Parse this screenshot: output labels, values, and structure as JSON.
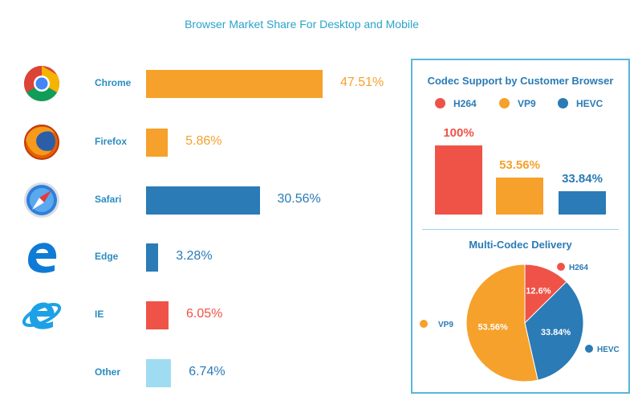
{
  "title": "Browser Market Share For Desktop and Mobile",
  "colors": {
    "orange": "#f5a12b",
    "blue": "#2a7bb6",
    "red": "#ef5347",
    "lightblue": "#9fdcf2",
    "accent": "#2ba3c9"
  },
  "chart_data": [
    {
      "type": "bar",
      "orientation": "horizontal",
      "title": "Browser Market Share For Desktop and Mobile",
      "categories": [
        "Chrome",
        "Firefox",
        "Safari",
        "Edge",
        "IE",
        "Other"
      ],
      "values": [
        47.51,
        5.86,
        30.56,
        3.28,
        6.05,
        6.74
      ],
      "value_labels": [
        "47.51%",
        "5.86%",
        "30.56%",
        "3.28%",
        "6.05%",
        "6.74%"
      ],
      "bar_colors": [
        "#f5a12b",
        "#f5a12b",
        "#2a7bb6",
        "#2a7bb6",
        "#ef5347",
        "#9fdcf2"
      ],
      "icons": [
        "chrome-icon",
        "firefox-icon",
        "safari-icon",
        "edge-icon",
        "ie-icon",
        ""
      ]
    },
    {
      "type": "bar",
      "title": "Codec Support by Customer Browser",
      "categories": [
        "H264",
        "VP9",
        "HEVC"
      ],
      "values": [
        100,
        53.56,
        33.84
      ],
      "value_labels": [
        "100%",
        "53.56%",
        "33.84%"
      ],
      "bar_colors": [
        "#ef5347",
        "#f5a12b",
        "#2a7bb6"
      ],
      "legend": "top"
    },
    {
      "type": "pie",
      "title": "Multi-Codec Delivery",
      "categories": [
        "H264",
        "HEVC",
        "VP9"
      ],
      "values": [
        12.6,
        33.84,
        53.56
      ],
      "value_labels": [
        "12.6%",
        "33.84%",
        "53.56%"
      ],
      "colors": [
        "#ef5347",
        "#2a7bb6",
        "#f5a12b"
      ]
    }
  ]
}
